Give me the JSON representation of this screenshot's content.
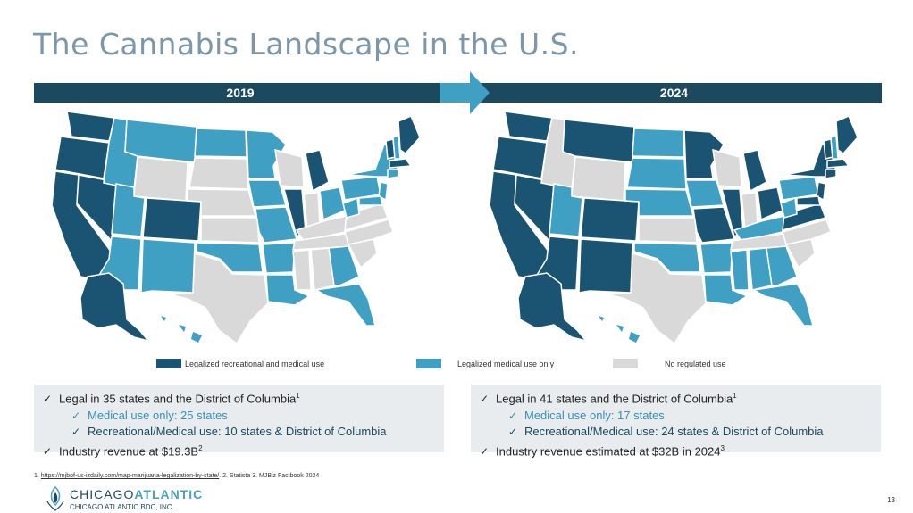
{
  "title": "The Cannabis Landscape in the U.S.",
  "bands": {
    "left": "2019",
    "right": "2024"
  },
  "colors": {
    "recreational": "#1b5472",
    "medical": "#3fa0c4",
    "none": "#d9d9d9",
    "band": "#1b4a60",
    "title": "#7b97ac"
  },
  "legend": [
    {
      "label": "Legalized recreational and medical use",
      "color": "#1b5472"
    },
    {
      "label": "Legalized medical use only",
      "color": "#3fa0c4"
    },
    {
      "label": "No regulated use",
      "color": "#d9d9d9"
    }
  ],
  "panels": {
    "left": {
      "line1": "Legal in 35 states and the District of Columbia",
      "line1_sup": "1",
      "line2": "Medical use only: 25 states",
      "line3": "Recreational/Medical use: 10 states & District of Columbia",
      "line4": "Industry revenue at $19.3B",
      "line4_sup": "2"
    },
    "right": {
      "line1": "Legal in 41 states and the District of Columbia",
      "line1_sup": "1",
      "line2": "Medical use only: 17 states",
      "line3": "Recreational/Medical use: 24 states & District of Columbia",
      "line4": "Industry revenue estimated at $32B in 2024",
      "line4_sup": "3"
    }
  },
  "footnote": {
    "prefix": "1. ",
    "url": "https://mjbof-us-izdaily.com/map-marijuana-legalization-by-state/",
    "rest": ". 2. Statista 3. MJBiz Factbook 2024"
  },
  "logo": {
    "part1": "CHICAGO",
    "part2": "ATLANTIC",
    "sub": "CHICAGO ATLANTIC BDC, INC."
  },
  "page_number": "13"
}
